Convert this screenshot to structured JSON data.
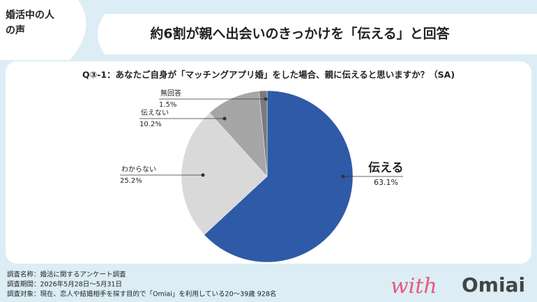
{
  "badge": [
    "婚活中の人",
    "の声"
  ],
  "chart_data": {
    "type": "pie",
    "title": "約6割が親へ出会いのきっかけを「伝える」と回答",
    "subtitle": "Q③-1：あなたご自身が「マッチングアプリ婚」をした場合、親に伝えると思いますか？（SA)",
    "categories": [
      "伝える",
      "わからない",
      "伝えない",
      "無回答"
    ],
    "values": [
      63.1,
      25.2,
      10.2,
      1.5
    ],
    "value_labels": [
      "63.1%",
      "25.2%",
      "10.2%",
      "1.5%"
    ],
    "colors": [
      "#2f5aa8",
      "#d9d9d9",
      "#a6a6a6",
      "#7a7a7a"
    ]
  },
  "footer": [
    "調査名称：婚活に関するアンケート調査",
    "調査期間：2026年5月28日～5月31日",
    "調査対象：現在、恋人や結婚相手を探す目的で「Omiai」を利用している20～39歳 928名"
  ],
  "logo": {
    "script": "with",
    "brand": "Omiai"
  }
}
